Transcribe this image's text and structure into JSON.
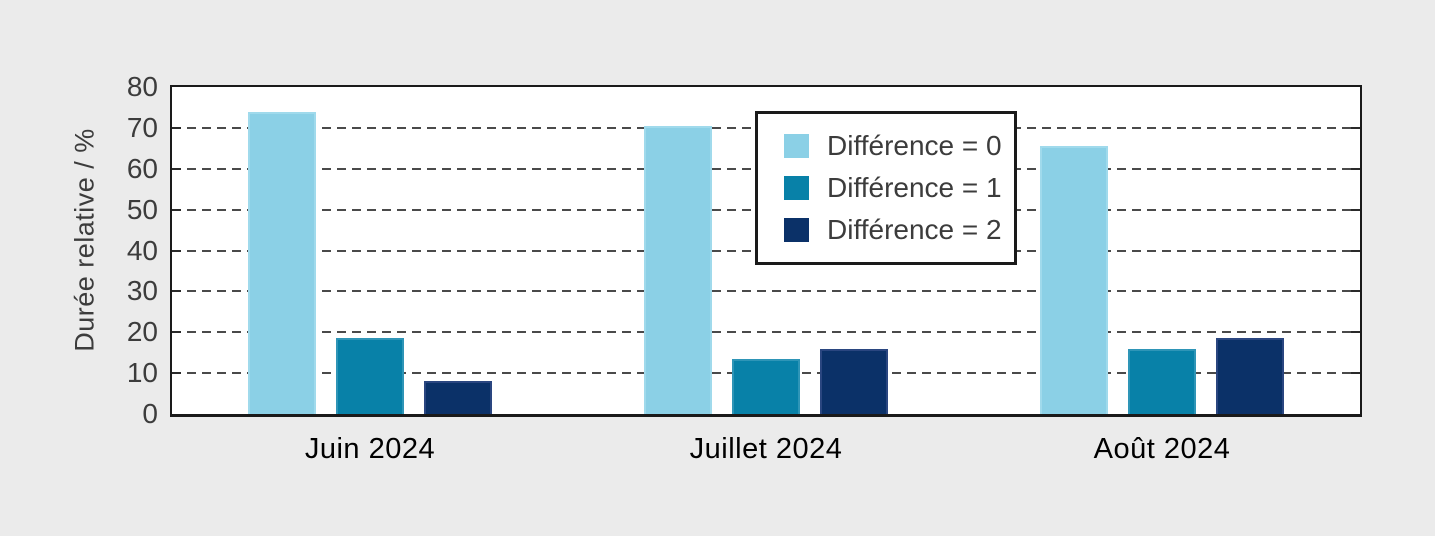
{
  "chart_data": {
    "type": "bar",
    "title": "",
    "xlabel": "",
    "ylabel": "Durée relative / %",
    "categories": [
      "Juin 2024",
      "Juillet 2024",
      "Août 2024"
    ],
    "series": [
      {
        "name": "Différence = 0",
        "values": [
          74,
          70.5,
          65.5
        ],
        "color": "#8bd0e6",
        "edge_color": "#a0daec"
      },
      {
        "name": "Différence = 1",
        "values": [
          18.5,
          13.5,
          16
        ],
        "color": "#0881a8",
        "edge_color": "#2e95b7"
      },
      {
        "name": "Différence = 2",
        "values": [
          8,
          16,
          18.5
        ],
        "color": "#0b3168",
        "edge_color": "#2a4680"
      }
    ],
    "ylim": [
      0,
      80
    ],
    "yticks": [
      0,
      10,
      20,
      30,
      40,
      50,
      60,
      70,
      80
    ],
    "grid": "horizontal dashed",
    "legend_position": "inside upper center-right"
  },
  "colors": {
    "page_bg": "#ebebeb",
    "plot_bg": "#ffffff",
    "frame": "#1a1a1a",
    "grid": "#4a4a4a",
    "text": "#3c3c3c"
  }
}
